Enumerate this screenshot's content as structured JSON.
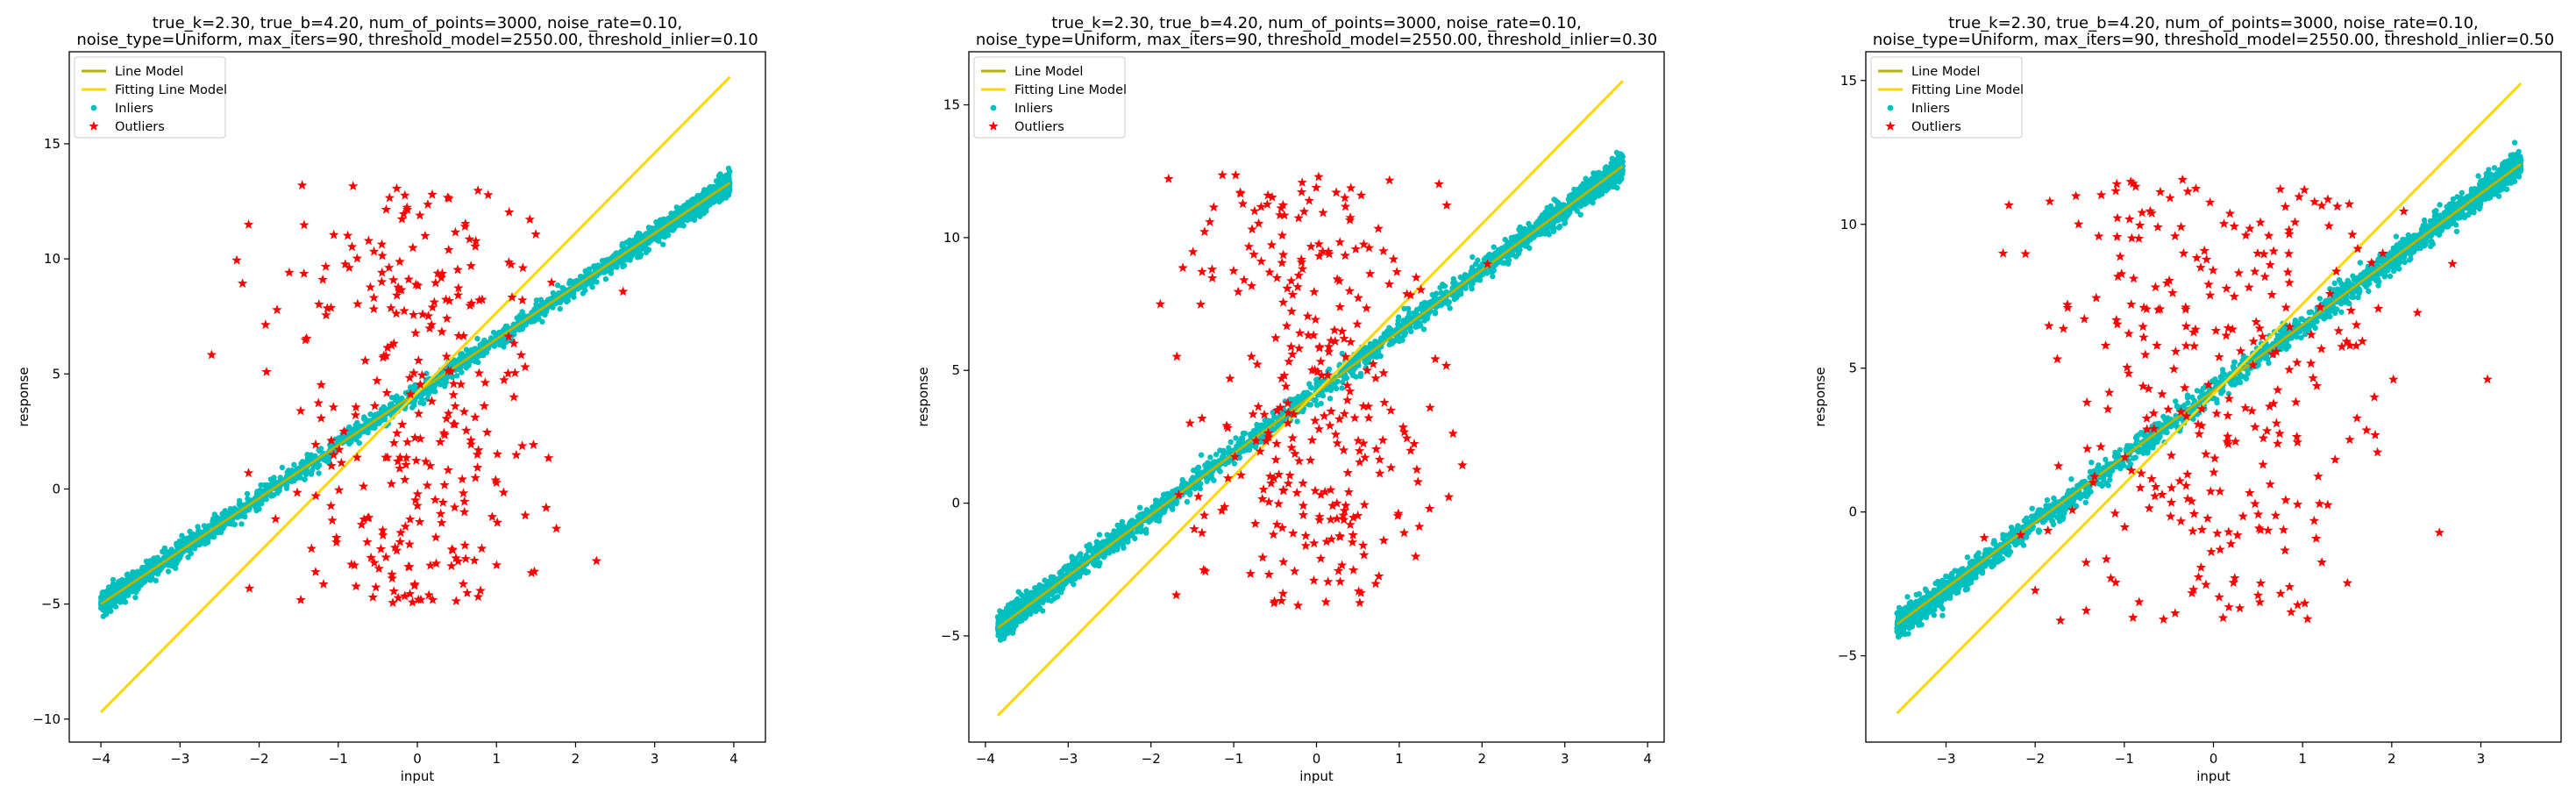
{
  "colors": {
    "line_model": "#b5b500",
    "fitting_line_model": "#ffd700",
    "inliers": "#00bfbf",
    "outliers": "#ff0000",
    "axes": "#000000",
    "background": "#ffffff"
  },
  "chart_data": [
    {
      "type": "scatter",
      "title": [
        "true_k=2.30, true_b=4.20, num_of_points=3000, noise_rate=0.10,",
        "noise_type=Uniform, max_iters=90, threshold_model=2550.00, threshold_inlier=0.10"
      ],
      "xlabel": "input",
      "ylabel": "response",
      "xlim": [
        -4.4,
        4.4
      ],
      "ylim": [
        -11.0,
        19.0
      ],
      "xticks": [
        -4,
        -3,
        -2,
        -1,
        0,
        1,
        2,
        3,
        4
      ],
      "yticks": [
        -10,
        -5,
        0,
        5,
        10,
        15
      ],
      "legend": {
        "position": "upper-left",
        "entries": [
          "Line Model",
          "Fitting Line Model",
          "Inliers",
          "Outliers"
        ]
      },
      "series": [
        {
          "name": "Line Model",
          "kind": "line",
          "x": [
            -4.0,
            3.95
          ],
          "y": [
            -5.0,
            13.3
          ]
        },
        {
          "name": "Fitting Line Model",
          "kind": "line",
          "x": [
            -4.0,
            3.95
          ],
          "y": [
            -9.7,
            17.9
          ]
        },
        {
          "name": "Inliers",
          "kind": "scatter",
          "model": {
            "k": 2.3,
            "b": 4.2,
            "x_range": [
              -4.0,
              3.95
            ],
            "noise": 0.5,
            "count": 2700
          }
        },
        {
          "name": "Outliers",
          "kind": "scatter",
          "model": {
            "x_range": [
              -2.6,
              2.6
            ],
            "y_range": [
              -5.0,
              13.2
            ],
            "count": 300
          }
        }
      ]
    },
    {
      "type": "scatter",
      "title": [
        "true_k=2.30, true_b=4.20, num_of_points=3000, noise_rate=0.10,",
        "noise_type=Uniform, max_iters=90, threshold_model=2550.00, threshold_inlier=0.30"
      ],
      "xlabel": "input",
      "ylabel": "response",
      "xlim": [
        -4.2,
        4.2
      ],
      "ylim": [
        -9.0,
        17.0
      ],
      "xticks": [
        -4,
        -3,
        -2,
        -1,
        0,
        1,
        2,
        3,
        4
      ],
      "yticks": [
        -5,
        0,
        5,
        10,
        15
      ],
      "legend": {
        "position": "upper-left",
        "entries": [
          "Line Model",
          "Fitting Line Model",
          "Inliers",
          "Outliers"
        ]
      },
      "series": [
        {
          "name": "Line Model",
          "kind": "line",
          "x": [
            -3.85,
            3.7
          ],
          "y": [
            -4.7,
            12.7
          ]
        },
        {
          "name": "Fitting Line Model",
          "kind": "line",
          "x": [
            -3.85,
            3.7
          ],
          "y": [
            -8.0,
            15.9
          ]
        },
        {
          "name": "Inliers",
          "kind": "scatter",
          "model": {
            "k": 2.3,
            "b": 4.2,
            "x_range": [
              -3.85,
              3.7
            ],
            "noise": 0.5,
            "count": 2700
          }
        },
        {
          "name": "Outliers",
          "kind": "scatter",
          "model": {
            "x_range": [
              -2.1,
              2.5
            ],
            "y_range": [
              -3.9,
              12.4
            ],
            "count": 300
          }
        }
      ]
    },
    {
      "type": "scatter",
      "title": [
        "true_k=2.30, true_b=4.20, num_of_points=3000, noise_rate=0.10,",
        "noise_type=Uniform, max_iters=90, threshold_model=2550.00, threshold_inlier=0.50"
      ],
      "xlabel": "input",
      "ylabel": "response",
      "xlim": [
        -3.9,
        3.9
      ],
      "ylim": [
        -8.0,
        16.0
      ],
      "xticks": [
        -3,
        -2,
        -1,
        0,
        1,
        2,
        3
      ],
      "yticks": [
        -5,
        0,
        5,
        10,
        15
      ],
      "legend": {
        "position": "upper-left",
        "entries": [
          "Line Model",
          "Fitting Line Model",
          "Inliers",
          "Outliers"
        ]
      },
      "series": [
        {
          "name": "Line Model",
          "kind": "line",
          "x": [
            -3.55,
            3.45
          ],
          "y": [
            -3.9,
            12.1
          ]
        },
        {
          "name": "Fitting Line Model",
          "kind": "line",
          "x": [
            -3.55,
            3.45
          ],
          "y": [
            -7.0,
            14.9
          ]
        },
        {
          "name": "Inliers",
          "kind": "scatter",
          "model": {
            "k": 2.3,
            "b": 4.2,
            "x_range": [
              -3.55,
              3.45
            ],
            "noise": 0.5,
            "count": 2700
          }
        },
        {
          "name": "Outliers",
          "kind": "scatter",
          "model": {
            "x_range": [
              -3.6,
              3.3
            ],
            "y_range": [
              -3.8,
              11.6
            ],
            "count": 300
          }
        }
      ]
    }
  ]
}
